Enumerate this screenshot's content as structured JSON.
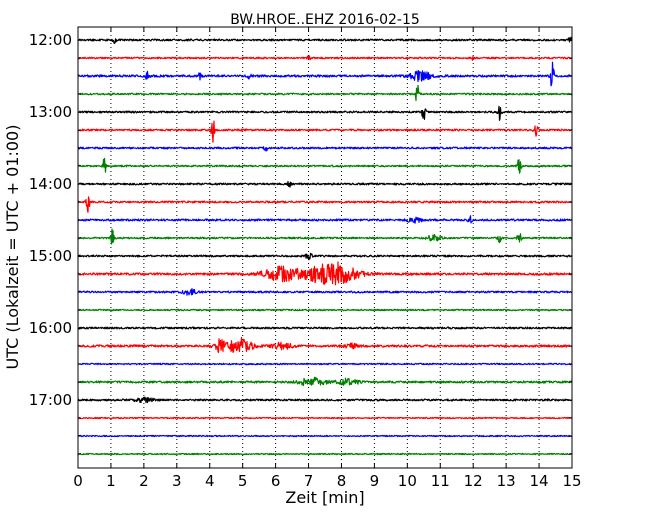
{
  "chart_data": {
    "type": "line",
    "title": "BW.HROE..EHZ 2016-02-15",
    "xlabel": "Zeit  [min]",
    "ylabel": "UTC (Lokalzeit = UTC + 01:00)",
    "xlim": [
      0,
      15
    ],
    "x_ticks": [
      "0",
      "1",
      "2",
      "3",
      "4",
      "5",
      "6",
      "7",
      "8",
      "9",
      "10",
      "11",
      "12",
      "13",
      "14",
      "15"
    ],
    "grid": "vertical dotted",
    "y_tick_labels": [
      "12:00",
      "13:00",
      "14:00",
      "15:00",
      "16:00",
      "17:00"
    ],
    "colors": [
      "#000000",
      "#ff0000",
      "#0000ff",
      "#008000"
    ],
    "traces": [
      {
        "time": "12:00",
        "color": "#000000",
        "amp": 1.0,
        "events": [
          {
            "x": 1.1,
            "a": 3,
            "w": 0.05
          },
          {
            "x": 14.95,
            "a": 4,
            "w": 0.05
          }
        ]
      },
      {
        "time": "12:15",
        "color": "#ff0000",
        "amp": 0.9,
        "events": [
          {
            "x": 7.0,
            "a": 2,
            "w": 0.05
          },
          {
            "x": 12.0,
            "a": 2,
            "w": 0.05
          }
        ]
      },
      {
        "time": "12:30",
        "color": "#0000ff",
        "amp": 1.2,
        "events": [
          {
            "x": 2.1,
            "a": 5,
            "w": 0.05
          },
          {
            "x": 3.7,
            "a": 3,
            "w": 0.05
          },
          {
            "x": 5.2,
            "a": 5,
            "w": 0.05
          },
          {
            "x": 10.4,
            "a": 5,
            "w": 0.3
          },
          {
            "x": 14.4,
            "a": 16,
            "w": 0.05
          }
        ]
      },
      {
        "time": "12:45",
        "color": "#008000",
        "amp": 0.9,
        "events": [
          {
            "x": 10.3,
            "a": 10,
            "w": 0.05
          }
        ]
      },
      {
        "time": "13:00",
        "color": "#000000",
        "amp": 1.0,
        "events": [
          {
            "x": 10.5,
            "a": 10,
            "w": 0.05
          },
          {
            "x": 12.8,
            "a": 10,
            "w": 0.05
          }
        ]
      },
      {
        "time": "13:15",
        "color": "#ff0000",
        "amp": 1.0,
        "events": [
          {
            "x": 4.1,
            "a": 12,
            "w": 0.05
          },
          {
            "x": 13.9,
            "a": 9,
            "w": 0.05
          }
        ]
      },
      {
        "time": "13:30",
        "color": "#0000ff",
        "amp": 1.0,
        "events": [
          {
            "x": 5.7,
            "a": 3,
            "w": 0.05
          }
        ]
      },
      {
        "time": "13:45",
        "color": "#008000",
        "amp": 0.9,
        "events": [
          {
            "x": 0.8,
            "a": 9,
            "w": 0.05
          },
          {
            "x": 13.4,
            "a": 10,
            "w": 0.05
          }
        ]
      },
      {
        "time": "14:00",
        "color": "#000000",
        "amp": 1.0,
        "events": [
          {
            "x": 6.4,
            "a": 4,
            "w": 0.05
          }
        ]
      },
      {
        "time": "14:15",
        "color": "#ff0000",
        "amp": 1.0,
        "events": [
          {
            "x": 0.3,
            "a": 10,
            "w": 0.05
          }
        ]
      },
      {
        "time": "14:30",
        "color": "#0000ff",
        "amp": 1.1,
        "events": [
          {
            "x": 10.2,
            "a": 3,
            "w": 0.2
          },
          {
            "x": 11.9,
            "a": 5,
            "w": 0.05
          }
        ]
      },
      {
        "time": "14:45",
        "color": "#008000",
        "amp": 0.9,
        "events": [
          {
            "x": 1.05,
            "a": 11,
            "w": 0.05
          },
          {
            "x": 10.8,
            "a": 3,
            "w": 0.2
          },
          {
            "x": 12.8,
            "a": 4,
            "w": 0.05
          },
          {
            "x": 13.4,
            "a": 11,
            "w": 0.05
          }
        ]
      },
      {
        "time": "15:00",
        "color": "#000000",
        "amp": 1.0,
        "events": [
          {
            "x": 7.0,
            "a": 3,
            "w": 0.1
          }
        ]
      },
      {
        "time": "15:15",
        "color": "#ff0000",
        "amp": 1.2,
        "events": [
          {
            "x": 6.2,
            "a": 7,
            "w": 0.55
          },
          {
            "x": 7.7,
            "a": 12,
            "w": 0.7
          }
        ]
      },
      {
        "time": "15:30",
        "color": "#0000ff",
        "amp": 1.0,
        "events": [
          {
            "x": 3.4,
            "a": 3,
            "w": 0.2
          }
        ]
      },
      {
        "time": "15:45",
        "color": "#008000",
        "amp": 0.8,
        "events": []
      },
      {
        "time": "16:00",
        "color": "#000000",
        "amp": 1.0,
        "events": []
      },
      {
        "time": "16:15",
        "color": "#ff0000",
        "amp": 1.2,
        "events": [
          {
            "x": 4.3,
            "a": 6,
            "w": 0.15
          },
          {
            "x": 4.9,
            "a": 8,
            "w": 0.35
          },
          {
            "x": 6.2,
            "a": 3,
            "w": 0.3
          },
          {
            "x": 8.3,
            "a": 2,
            "w": 0.2
          }
        ]
      },
      {
        "time": "16:30",
        "color": "#0000ff",
        "amp": 0.8,
        "events": []
      },
      {
        "time": "16:45",
        "color": "#008000",
        "amp": 1.1,
        "events": [
          {
            "x": 7.1,
            "a": 4,
            "w": 0.4
          },
          {
            "x": 8.2,
            "a": 3,
            "w": 0.3
          }
        ]
      },
      {
        "time": "17:00",
        "color": "#000000",
        "amp": 1.0,
        "events": [
          {
            "x": 2.0,
            "a": 2,
            "w": 0.3
          }
        ]
      },
      {
        "time": "17:15",
        "color": "#ff0000",
        "amp": 0.7,
        "events": []
      },
      {
        "time": "17:30",
        "color": "#0000ff",
        "amp": 0.7,
        "events": []
      },
      {
        "time": "17:45",
        "color": "#008000",
        "amp": 0.7,
        "events": []
      }
    ]
  }
}
